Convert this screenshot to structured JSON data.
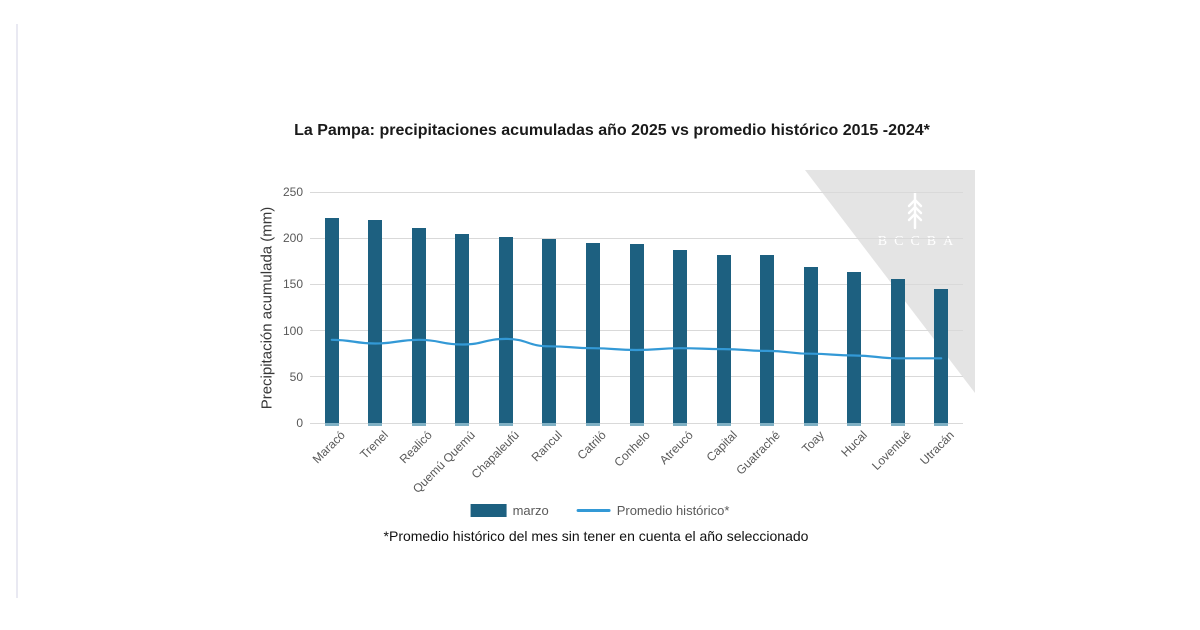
{
  "chart_data": {
    "type": "bar",
    "title": "La Pampa: precipitaciones acumuladas año 2025 vs promedio histórico 2015 -2024*",
    "ylabel": "Precipitación acumulada (mm)",
    "xlabel": "",
    "ylim": [
      0,
      250
    ],
    "yticks": [
      0,
      50,
      100,
      150,
      200,
      250
    ],
    "grid": true,
    "legend_position": "bottom",
    "categories": [
      "Maracó",
      "Trenel",
      "Realicó",
      "Quemú Quemú",
      "Chapaleufú",
      "Rancul",
      "Catriló",
      "Conhelo",
      "Atreucó",
      "Capital",
      "Guatraché",
      "Toay",
      "Hucal",
      "Loventué",
      "Utracán"
    ],
    "series": [
      {
        "name": "marzo",
        "type": "bar",
        "color": "#1d6080",
        "values": [
          222,
          220,
          211,
          205,
          201,
          199,
          195,
          194,
          187,
          182,
          182,
          169,
          163,
          156,
          145
        ]
      },
      {
        "name": "Promedio histórico*",
        "type": "line",
        "color": "#3399d6",
        "values": [
          90,
          86,
          90,
          85,
          91,
          83,
          81,
          79,
          81,
          80,
          78,
          75,
          73,
          70,
          70
        ]
      }
    ],
    "footnote": "*Promedio histórico del mes sin tener en cuenta el año seleccionado"
  },
  "axes": {
    "tick_color": "#595959",
    "grid_color": "#d9d9d9",
    "bar_foot_color": "#7fb0c4"
  },
  "watermark": {
    "text": "BCCBA",
    "icon": "wheat-icon",
    "background": "#e4e4e4",
    "foreground": "#ffffff"
  }
}
